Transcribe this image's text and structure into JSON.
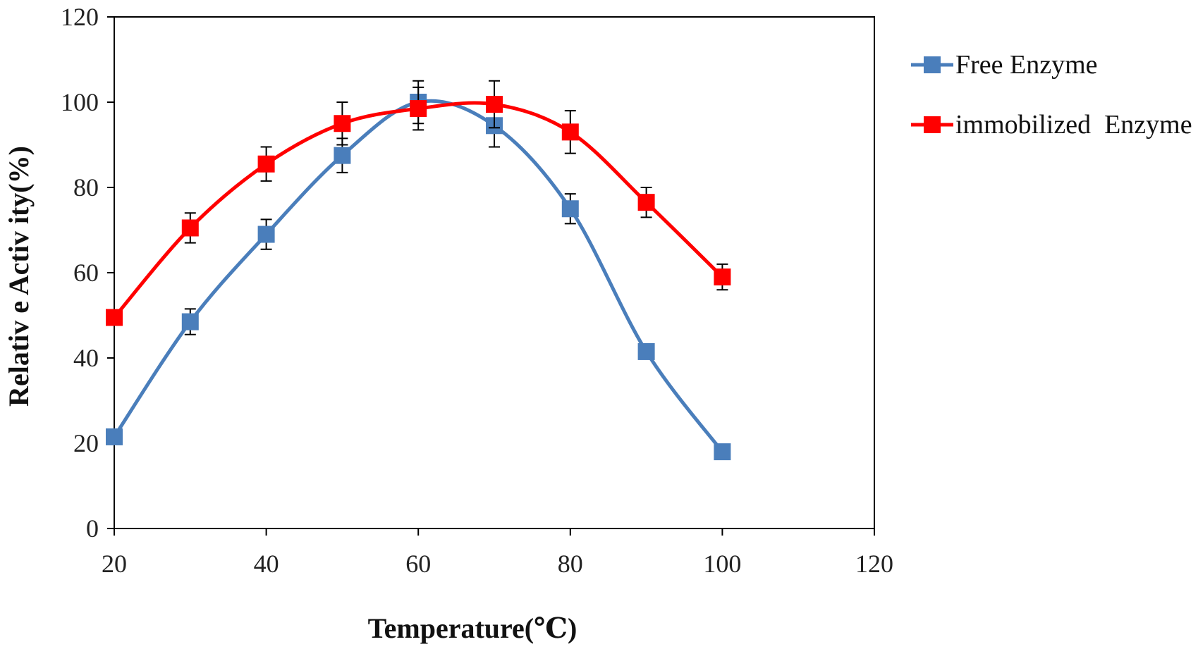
{
  "chart_data": {
    "type": "line",
    "xlabel": "Temperature(℃)",
    "ylabel": "Relativ e Activ ity(%)",
    "xlim": [
      20,
      120
    ],
    "ylim": [
      0,
      120
    ],
    "xticks": [
      "20",
      "40",
      "60",
      "80",
      "100",
      "120"
    ],
    "yticks": [
      "0",
      "20",
      "40",
      "60",
      "80",
      "100",
      "120"
    ],
    "grid": false,
    "legend_position": "right",
    "x": [
      20,
      30,
      40,
      50,
      60,
      70,
      80,
      90,
      100
    ],
    "series": [
      {
        "name": "Free Enzyme",
        "color": "#4a7ebb",
        "marker": "square",
        "values": [
          21.5,
          48.5,
          69,
          87.5,
          100,
          94.5,
          75,
          41.5,
          18
        ],
        "errors": [
          0,
          3,
          3.5,
          4,
          5,
          5,
          3.5,
          0,
          0
        ]
      },
      {
        "name": "immobilized  Enzyme",
        "color": "#ff0000",
        "marker": "square",
        "values": [
          49.5,
          70.5,
          85.5,
          95,
          98.5,
          99.5,
          93,
          76.5,
          59
        ],
        "errors": [
          0,
          3.5,
          4,
          5,
          5,
          5.5,
          5,
          3.5,
          3
        ]
      }
    ]
  }
}
